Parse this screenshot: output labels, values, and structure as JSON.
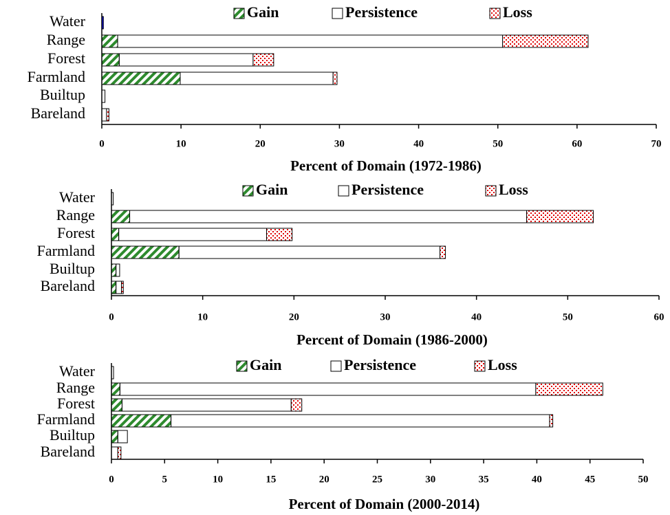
{
  "chart_data": [
    {
      "type": "stacked-bar",
      "orientation": "horizontal",
      "x_label": "Percent of Domain (1972-1986)",
      "categories": [
        "Water",
        "Range",
        "Forest",
        "Farmland",
        "Builtup",
        "Bareland"
      ],
      "series": [
        {
          "name": "Gain",
          "color": "#2e8b2e",
          "values": [
            0,
            2.0,
            2.2,
            9.9,
            0,
            0
          ]
        },
        {
          "name": "Persistence",
          "color": "#0000ff",
          "values": [
            0.2,
            48.6,
            16.9,
            19.3,
            0.4,
            0.6
          ]
        },
        {
          "name": "Loss",
          "color": "#e00000",
          "values": [
            0,
            10.8,
            2.6,
            0.5,
            0,
            0.3
          ]
        }
      ],
      "xlim": [
        0,
        70
      ],
      "xticks": [
        0,
        10,
        20,
        30,
        40,
        50,
        60,
        70
      ]
    },
    {
      "type": "stacked-bar",
      "orientation": "horizontal",
      "x_label": "Percent of Domain (1986-2000)",
      "categories": [
        "Water",
        "Range",
        "Forest",
        "Farmland",
        "Builtup",
        "Bareland"
      ],
      "series": [
        {
          "name": "Gain",
          "color": "#2e8b2e",
          "values": [
            0,
            2.0,
            0.8,
            7.4,
            0.5,
            0.5
          ]
        },
        {
          "name": "Persistence",
          "color": "#0000ff",
          "values": [
            0.2,
            43.5,
            16.2,
            28.6,
            0.4,
            0.6
          ]
        },
        {
          "name": "Loss",
          "color": "#e00000",
          "values": [
            0,
            7.3,
            2.8,
            0.6,
            0,
            0.2
          ]
        }
      ],
      "xlim": [
        0,
        60
      ],
      "xticks": [
        0,
        10,
        20,
        30,
        40,
        50,
        60
      ]
    },
    {
      "type": "stacked-bar",
      "orientation": "horizontal",
      "x_label": "Percent of Domain (2000-2014)",
      "categories": [
        "Water",
        "Range",
        "Forest",
        "Farmland",
        "Builtup",
        "Bareland"
      ],
      "series": [
        {
          "name": "Gain",
          "color": "#2e8b2e",
          "values": [
            0,
            0.8,
            1.0,
            5.6,
            0.6,
            0
          ]
        },
        {
          "name": "Persistence",
          "color": "#0000ff",
          "values": [
            0.2,
            39.1,
            15.9,
            35.6,
            0.9,
            0.6
          ]
        },
        {
          "name": "Loss",
          "color": "#e00000",
          "values": [
            0,
            6.3,
            1.0,
            0.3,
            0,
            0.3
          ]
        }
      ],
      "xlim": [
        0,
        50
      ],
      "xticks": [
        0,
        5,
        10,
        15,
        20,
        25,
        30,
        35,
        40,
        45,
        50
      ]
    }
  ]
}
